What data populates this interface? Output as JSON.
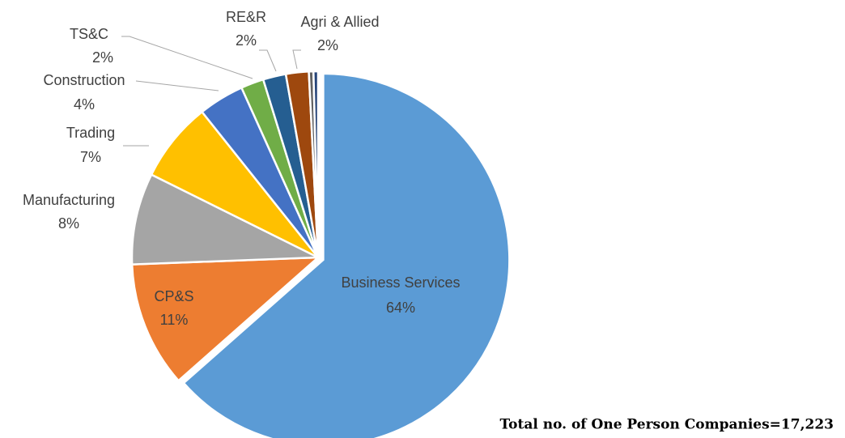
{
  "chart_data": {
    "type": "pie",
    "categories": [
      "Business Services",
      "CP&S",
      "Manufacturing",
      "Trading",
      "Construction",
      "TS&C",
      "RE&R",
      "Agri & Allied",
      null,
      null
    ],
    "values": [
      64,
      11,
      8,
      7,
      4,
      2,
      2,
      2,
      0.4,
      0.4
    ],
    "value_labels": [
      "64%",
      "11%",
      "8%",
      "7%",
      "4%",
      "2%",
      "2%",
      "2%",
      null,
      null
    ],
    "colors": [
      "#5b9bd5",
      "#ed7d31",
      "#a5a5a5",
      "#ffc000",
      "#4472c4",
      "#70ad47",
      "#255e91",
      "#9e480e",
      "#636363",
      "#264478"
    ],
    "annotation": "Total no. of One Person Companies=17,223"
  }
}
